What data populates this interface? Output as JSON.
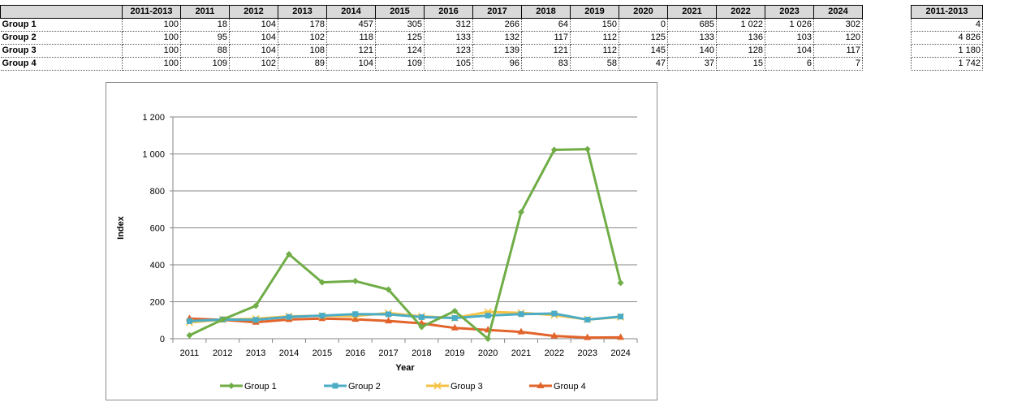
{
  "table": {
    "headers": [
      "",
      "2011-2013",
      "2011",
      "2012",
      "2013",
      "2014",
      "2015",
      "2016",
      "2017",
      "2018",
      "2019",
      "2020",
      "2021",
      "2022",
      "2023",
      "2024"
    ],
    "rows": [
      {
        "label": "Group 1",
        "cells": [
          "100",
          "18",
          "104",
          "178",
          "457",
          "305",
          "312",
          "266",
          "64",
          "150",
          "0",
          "685",
          "1 022",
          "1 026",
          "302"
        ]
      },
      {
        "label": "Group 2",
        "cells": [
          "100",
          "95",
          "104",
          "102",
          "118",
          "125",
          "133",
          "132",
          "117",
          "112",
          "125",
          "133",
          "136",
          "103",
          "120"
        ]
      },
      {
        "label": "Group 3",
        "cells": [
          "100",
          "88",
          "104",
          "108",
          "121",
          "124",
          "123",
          "139",
          "121",
          "112",
          "145",
          "140",
          "128",
          "104",
          "117"
        ]
      },
      {
        "label": "Group 4",
        "cells": [
          "100",
          "109",
          "102",
          "89",
          "104",
          "109",
          "105",
          "96",
          "83",
          "58",
          "47",
          "37",
          "15",
          "6",
          "7"
        ]
      }
    ]
  },
  "side_table": {
    "header": "2011-2013",
    "values": [
      "4",
      "4 826",
      "1 180",
      "1 742"
    ]
  },
  "chart_data": {
    "type": "line",
    "title": "",
    "xlabel": "Year",
    "ylabel": "Index",
    "x": [
      "2011",
      "2012",
      "2013",
      "2014",
      "2015",
      "2016",
      "2017",
      "2018",
      "2019",
      "2020",
      "2021",
      "2022",
      "2023",
      "2024"
    ],
    "ylim": [
      0,
      1200
    ],
    "yticks": [
      0,
      200,
      400,
      600,
      800,
      1000,
      1200
    ],
    "ytick_labels": [
      "0",
      "200",
      "400",
      "600",
      "800",
      "1 000",
      "1 200"
    ],
    "grid": "horizontal",
    "legend_position": "bottom",
    "series": [
      {
        "name": "Group 1",
        "color": "#70ad47",
        "marker": "diamond",
        "values": [
          18,
          104,
          178,
          457,
          305,
          312,
          266,
          64,
          150,
          0,
          685,
          1022,
          1026,
          302
        ]
      },
      {
        "name": "Group 2",
        "color": "#4bacc6",
        "marker": "square",
        "values": [
          95,
          104,
          102,
          118,
          125,
          133,
          132,
          117,
          112,
          125,
          133,
          136,
          103,
          120
        ]
      },
      {
        "name": "Group 3",
        "color": "#f5c244",
        "marker": "x",
        "values": [
          88,
          104,
          108,
          121,
          124,
          123,
          139,
          121,
          112,
          145,
          140,
          128,
          104,
          117
        ]
      },
      {
        "name": "Group 4",
        "color": "#e2642b",
        "marker": "triangle",
        "values": [
          109,
          102,
          89,
          104,
          109,
          105,
          96,
          83,
          58,
          47,
          37,
          15,
          6,
          7
        ]
      }
    ]
  }
}
